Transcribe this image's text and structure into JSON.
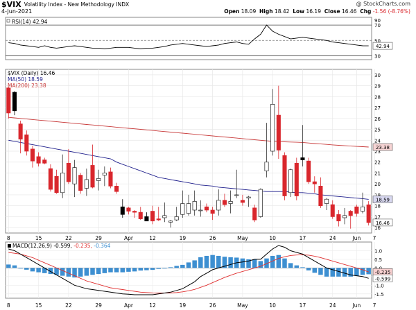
{
  "header": {
    "symbol": "$VIX",
    "name": "Volatility Index - New Methodology",
    "exchange": "INDX",
    "date": "4-Jun-2021",
    "copyright": "@ StockCharts.com",
    "open_label": "Open",
    "open": "18.09",
    "high_label": "High",
    "high": "18.42",
    "low_label": "Low",
    "low": "16.19",
    "close_label": "Close",
    "close": "16.46",
    "chg_label": "Chg",
    "chg": "-1.56 (-8.76%)"
  },
  "colors": {
    "up_candle": "#ffffff",
    "down_candle": "#d9262c",
    "neutral_candle": "#000000",
    "ma50": "#1f1f8c",
    "ma200": "#c83a3a",
    "macd_line": "#000000",
    "signal_line": "#e03030",
    "histogram": "#3d8fd1",
    "rsi_line": "#000000"
  },
  "chart_data": [
    {
      "type": "line",
      "panel": "RSI",
      "legend": "RSI(14) 42.94",
      "last_value": "42.94",
      "ylim": [
        25,
        80
      ],
      "y_ticks": [
        "30",
        "50",
        "70",
        "90"
      ],
      "reference_lines": [
        30,
        50,
        70
      ],
      "series": [
        {
          "name": "RSI(14)",
          "values": [
            47,
            46,
            44,
            43,
            42,
            41,
            43,
            41,
            40,
            41,
            42,
            43,
            42,
            41,
            40,
            40,
            39,
            40,
            41,
            41,
            41,
            40,
            39,
            40,
            40,
            41,
            42,
            44,
            45,
            46,
            45,
            44,
            43,
            42,
            43,
            44,
            46,
            47,
            48,
            46,
            45,
            52,
            58,
            70,
            62,
            58,
            55,
            52,
            53,
            54,
            53,
            52,
            51,
            50,
            48,
            47,
            46,
            45,
            44,
            43,
            42.94
          ]
        }
      ]
    },
    {
      "type": "candlestick",
      "panel": "price",
      "legend": "$VIX (Daily) 16.46",
      "x_tick_labels": [
        "8",
        "15",
        "22",
        "29",
        "Apr",
        "12",
        "19",
        "26",
        "May",
        "10",
        "17",
        "24",
        "Jun",
        "7"
      ],
      "y_ticks": [
        "16",
        "17",
        "18",
        "19",
        "20",
        "21",
        "22",
        "23",
        "24",
        "25",
        "26",
        "27",
        "28",
        "29",
        "30"
      ],
      "ylim": [
        15.5,
        30.5
      ],
      "price_badges": [
        "23.38",
        "18.59",
        "16.46"
      ],
      "candles": [
        {
          "o": 28.8,
          "h": 28.9,
          "l": 26.0,
          "c": 26.5
        },
        {
          "o": 28.4,
          "h": 28.5,
          "l": 26.3,
          "c": 26.7
        },
        {
          "o": 25.5,
          "h": 25.8,
          "l": 22.8,
          "c": 24.1
        },
        {
          "o": 24.5,
          "h": 24.9,
          "l": 22.6,
          "c": 23.0
        },
        {
          "o": 23.2,
          "h": 23.5,
          "l": 21.5,
          "c": 22.1
        },
        {
          "o": 22.5,
          "h": 22.9,
          "l": 21.6,
          "c": 21.9
        },
        {
          "o": 22.2,
          "h": 22.4,
          "l": 21.8,
          "c": 21.9
        },
        {
          "o": 21.4,
          "h": 21.8,
          "l": 19.3,
          "c": 19.5
        },
        {
          "o": 20.7,
          "h": 21.3,
          "l": 19.1,
          "c": 19.2
        },
        {
          "o": 19.2,
          "h": 22.7,
          "l": 18.7,
          "c": 21.0
        },
        {
          "o": 21.9,
          "h": 23.2,
          "l": 20.0,
          "c": 20.2
        },
        {
          "o": 20.0,
          "h": 22.2,
          "l": 18.8,
          "c": 21.5
        },
        {
          "o": 20.8,
          "h": 21.0,
          "l": 19.1,
          "c": 19.4
        },
        {
          "o": 19.6,
          "h": 21.4,
          "l": 18.9,
          "c": 20.4
        },
        {
          "o": 21.7,
          "h": 23.6,
          "l": 19.6,
          "c": 19.7
        },
        {
          "o": 20.3,
          "h": 21.3,
          "l": 19.4,
          "c": 20.5
        },
        {
          "o": 20.8,
          "h": 21.6,
          "l": 19.8,
          "c": 21.0
        },
        {
          "o": 21.1,
          "h": 21.5,
          "l": 19.6,
          "c": 19.8
        },
        {
          "o": 19.8,
          "h": 20.1,
          "l": 19.1,
          "c": 19.3
        },
        {
          "o": 17.9,
          "h": 18.6,
          "l": 16.9,
          "c": 17.2
        },
        {
          "o": 17.8,
          "h": 17.9,
          "l": 17.2,
          "c": 17.5
        },
        {
          "o": 17.5,
          "h": 17.6,
          "l": 16.9,
          "c": 17.4
        },
        {
          "o": 17.4,
          "h": 17.9,
          "l": 16.7,
          "c": 16.8
        },
        {
          "o": 17.0,
          "h": 17.4,
          "l": 16.6,
          "c": 16.6
        },
        {
          "o": 17.5,
          "h": 18.0,
          "l": 16.3,
          "c": 16.6
        },
        {
          "o": 16.8,
          "h": 17.9,
          "l": 16.6,
          "c": 16.7
        },
        {
          "o": 16.9,
          "h": 18.3,
          "l": 16.5,
          "c": 17.1
        },
        {
          "o": 16.5,
          "h": 16.7,
          "l": 16.0,
          "c": 16.6
        },
        {
          "o": 16.7,
          "h": 17.9,
          "l": 16.6,
          "c": 17.0
        },
        {
          "o": 17.2,
          "h": 19.4,
          "l": 16.9,
          "c": 18.2
        },
        {
          "o": 17.3,
          "h": 19.0,
          "l": 17.1,
          "c": 18.2
        },
        {
          "o": 17.6,
          "h": 19.4,
          "l": 17.1,
          "c": 18.4
        },
        {
          "o": 17.6,
          "h": 18.5,
          "l": 17.0,
          "c": 17.6
        },
        {
          "o": 17.9,
          "h": 18.2,
          "l": 17.4,
          "c": 17.6
        },
        {
          "o": 17.6,
          "h": 17.9,
          "l": 16.7,
          "c": 17.3
        },
        {
          "o": 17.6,
          "h": 19.5,
          "l": 17.1,
          "c": 18.5
        },
        {
          "o": 18.5,
          "h": 19.1,
          "l": 17.9,
          "c": 18.1
        },
        {
          "o": 18.2,
          "h": 19.4,
          "l": 17.3,
          "c": 18.4
        },
        {
          "o": 19.0,
          "h": 21.3,
          "l": 18.7,
          "c": 19.0
        },
        {
          "o": 18.5,
          "h": 19.0,
          "l": 18.0,
          "c": 18.3
        },
        {
          "o": 18.7,
          "h": 18.9,
          "l": 17.9,
          "c": 18.8
        },
        {
          "o": 17.8,
          "h": 18.1,
          "l": 16.5,
          "c": 16.7
        },
        {
          "o": 17.0,
          "h": 19.6,
          "l": 16.9,
          "c": 19.5
        },
        {
          "o": 21.2,
          "h": 25.6,
          "l": 20.6,
          "c": 22.0
        },
        {
          "o": 23.0,
          "h": 28.7,
          "l": 22.6,
          "c": 27.3
        },
        {
          "o": 26.3,
          "h": 29.0,
          "l": 22.3,
          "c": 23.1
        },
        {
          "o": 22.6,
          "h": 22.9,
          "l": 18.5,
          "c": 18.9
        },
        {
          "o": 19.2,
          "h": 21.4,
          "l": 18.8,
          "c": 21.3
        },
        {
          "o": 21.9,
          "h": 22.4,
          "l": 18.5,
          "c": 18.9
        },
        {
          "o": 22.2,
          "h": 25.4,
          "l": 21.6,
          "c": 22.4
        },
        {
          "o": 22.1,
          "h": 22.4,
          "l": 20.0,
          "c": 20.2
        },
        {
          "o": 20.2,
          "h": 20.7,
          "l": 19.2,
          "c": 20.0
        },
        {
          "o": 19.8,
          "h": 20.6,
          "l": 17.8,
          "c": 18.0
        },
        {
          "o": 18.2,
          "h": 18.7,
          "l": 17.6,
          "c": 18.6
        },
        {
          "o": 18.1,
          "h": 18.5,
          "l": 16.8,
          "c": 17.0
        },
        {
          "o": 17.2,
          "h": 17.6,
          "l": 16.1,
          "c": 16.6
        },
        {
          "o": 16.9,
          "h": 17.8,
          "l": 16.3,
          "c": 17.1
        },
        {
          "o": 17.5,
          "h": 17.6,
          "l": 15.9,
          "c": 17.1
        },
        {
          "o": 17.9,
          "h": 18.1,
          "l": 17.0,
          "c": 17.3
        },
        {
          "o": 17.5,
          "h": 19.2,
          "l": 17.3,
          "c": 17.9
        },
        {
          "o": 18.09,
          "h": 18.42,
          "l": 16.19,
          "c": 16.46
        }
      ],
      "series": [
        {
          "name": "MA(50) 18.59",
          "values": [
            null,
            null,
            null,
            null,
            null,
            null,
            null,
            null,
            null,
            null,
            null,
            null,
            null,
            null,
            null,
            null,
            null,
            null,
            null,
            null,
            null,
            null,
            null,
            null,
            null,
            null,
            null,
            null,
            null,
            null,
            null,
            null,
            null,
            null,
            null,
            null,
            null,
            null,
            null,
            null,
            null,
            null,
            null,
            null,
            null,
            null,
            null,
            null,
            null,
            null,
            null,
            null,
            null,
            null,
            null,
            null,
            null,
            null,
            null,
            null,
            18.59
          ]
        },
        {
          "name": "MA(200) 23.38",
          "values": [
            null,
            null,
            null,
            null,
            null,
            null,
            null,
            null,
            null,
            null,
            null,
            null,
            null,
            null,
            null,
            null,
            null,
            null,
            null,
            null,
            null,
            null,
            null,
            null,
            null,
            null,
            null,
            null,
            null,
            null,
            null,
            null,
            null,
            null,
            null,
            null,
            null,
            null,
            null,
            null,
            null,
            null,
            null,
            null,
            null,
            null,
            null,
            null,
            null,
            null,
            null,
            null,
            null,
            null,
            null,
            null,
            null,
            null,
            null,
            null,
            23.38
          ]
        }
      ],
      "ma50_path": [
        24.0,
        23.9,
        23.8,
        23.7,
        23.6,
        23.5,
        23.4,
        23.3,
        23.2,
        23.1,
        23.0,
        22.9,
        22.8,
        22.7,
        22.6,
        22.5,
        22.4,
        22.3,
        22.0,
        21.8,
        21.6,
        21.4,
        21.2,
        21.0,
        20.8,
        20.6,
        20.5,
        20.4,
        20.3,
        20.2,
        20.1,
        20.0,
        19.9,
        19.85,
        19.8,
        19.7,
        19.65,
        19.6,
        19.55,
        19.5,
        19.45,
        19.4,
        19.35,
        19.3,
        19.3,
        19.3,
        19.3,
        19.25,
        19.2,
        19.2,
        19.15,
        19.1,
        19.0,
        18.95,
        18.9,
        18.85,
        18.8,
        18.75,
        18.7,
        18.65,
        18.59
      ],
      "ma200_path": [
        26.1,
        26.05,
        26.0,
        25.95,
        25.9,
        25.85,
        25.8,
        25.75,
        25.7,
        25.65,
        25.6,
        25.55,
        25.5,
        25.45,
        25.4,
        25.35,
        25.3,
        25.25,
        25.2,
        25.15,
        25.1,
        25.05,
        25.0,
        24.95,
        24.9,
        24.85,
        24.8,
        24.75,
        24.7,
        24.65,
        24.6,
        24.55,
        24.5,
        24.45,
        24.4,
        24.35,
        24.3,
        24.25,
        24.2,
        24.15,
        24.1,
        24.05,
        24.0,
        23.95,
        23.9,
        23.88,
        23.86,
        23.84,
        23.82,
        23.8,
        23.75,
        23.7,
        23.66,
        23.62,
        23.58,
        23.54,
        23.5,
        23.47,
        23.44,
        23.41,
        23.38
      ]
    },
    {
      "type": "bar",
      "panel": "MACD",
      "legend_prefix": "MACD(12,26,9)",
      "macd_value": "-0.599",
      "signal_value": "-0.235",
      "hist_value": "-0.364",
      "y_ticks": [
        "1.0",
        "0.5",
        "0.0",
        "-0.5",
        "-1.0",
        "-1.5"
      ],
      "ylim": [
        -1.75,
        1.5
      ],
      "price_badges": [
        "-0.235",
        "-0.599"
      ],
      "macd_line": [
        1.1,
        1.0,
        0.8,
        0.6,
        0.4,
        0.2,
        0.0,
        -0.2,
        -0.4,
        -0.6,
        -0.8,
        -1.0,
        -1.1,
        -1.2,
        -1.25,
        -1.3,
        -1.35,
        -1.4,
        -1.45,
        -1.5,
        -1.52,
        -1.55,
        -1.55,
        -1.55,
        -1.55,
        -1.5,
        -1.45,
        -1.4,
        -1.3,
        -1.2,
        -1.0,
        -0.8,
        -0.5,
        -0.3,
        -0.1,
        0.0,
        0.1,
        0.2,
        0.3,
        0.35,
        0.4,
        0.5,
        0.5,
        0.8,
        1.1,
        1.3,
        1.2,
        1.0,
        0.9,
        0.8,
        0.6,
        0.4,
        0.2,
        0.0,
        -0.1,
        -0.2,
        -0.3,
        -0.4,
        -0.45,
        -0.5,
        -0.599
      ],
      "signal_line": [
        0.9,
        0.85,
        0.8,
        0.7,
        0.6,
        0.45,
        0.3,
        0.15,
        0.0,
        -0.15,
        -0.3,
        -0.45,
        -0.6,
        -0.75,
        -0.85,
        -0.95,
        -1.05,
        -1.15,
        -1.2,
        -1.25,
        -1.3,
        -1.35,
        -1.4,
        -1.42,
        -1.44,
        -1.45,
        -1.45,
        -1.44,
        -1.42,
        -1.38,
        -1.32,
        -1.24,
        -1.12,
        -1.0,
        -0.85,
        -0.7,
        -0.55,
        -0.42,
        -0.3,
        -0.2,
        -0.1,
        0.0,
        0.1,
        0.25,
        0.4,
        0.55,
        0.65,
        0.72,
        0.75,
        0.76,
        0.74,
        0.68,
        0.6,
        0.5,
        0.4,
        0.3,
        0.2,
        0.1,
        0.0,
        -0.1,
        -0.235
      ],
      "histogram": [
        0.2,
        0.15,
        0.0,
        -0.1,
        -0.2,
        -0.25,
        -0.3,
        -0.35,
        -0.4,
        -0.45,
        -0.5,
        -0.55,
        -0.5,
        -0.45,
        -0.4,
        -0.35,
        -0.3,
        -0.25,
        -0.25,
        -0.25,
        -0.22,
        -0.2,
        -0.15,
        -0.13,
        -0.11,
        -0.05,
        0.0,
        0.04,
        0.12,
        0.18,
        0.32,
        0.44,
        0.62,
        0.7,
        0.75,
        0.7,
        0.65,
        0.62,
        0.6,
        0.55,
        0.5,
        0.5,
        0.4,
        0.55,
        0.7,
        0.75,
        0.55,
        0.28,
        0.15,
        0.04,
        -0.14,
        -0.28,
        -0.4,
        -0.5,
        -0.5,
        -0.5,
        -0.5,
        -0.5,
        -0.45,
        -0.4,
        -0.364
      ]
    }
  ]
}
